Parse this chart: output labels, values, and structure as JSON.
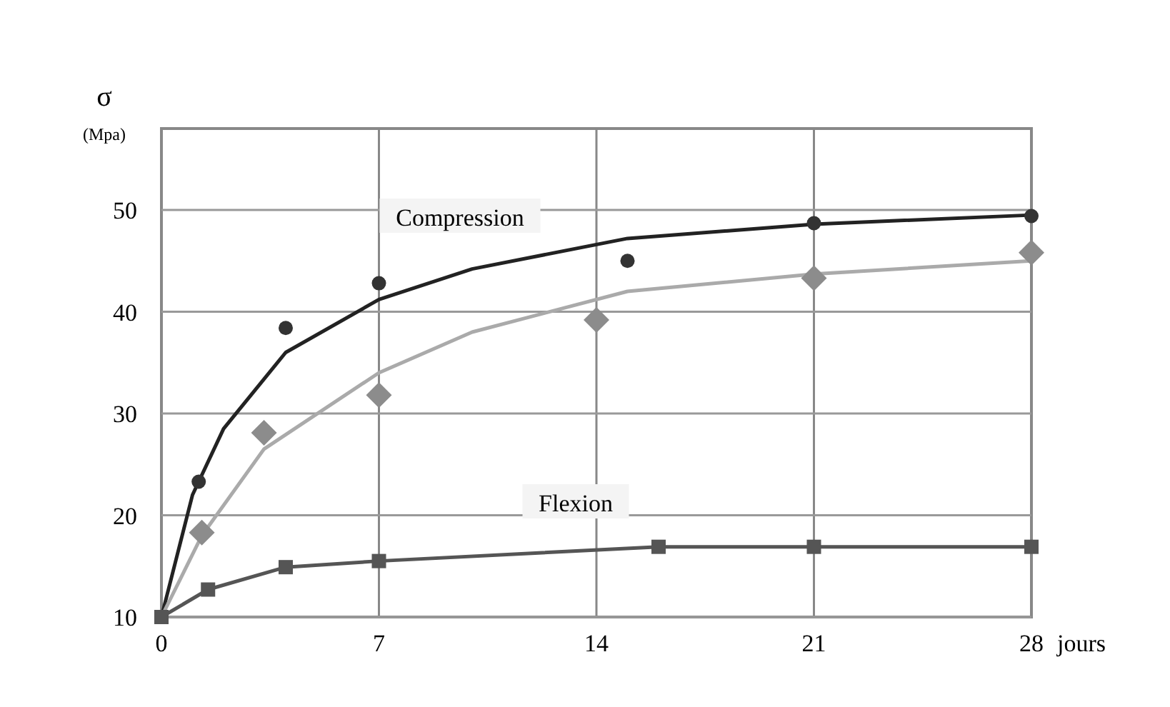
{
  "chart_data": {
    "type": "scatter",
    "ylabel": "σ\n(Mpa)",
    "xlabel": "jours",
    "xlim": [
      0,
      28
    ],
    "xticks": [
      0,
      7,
      14,
      21,
      28
    ],
    "ylim": [
      10,
      58
    ],
    "yticks": [
      10,
      20,
      30,
      40,
      50
    ],
    "grid": true,
    "line_style": "solid",
    "annotations": [
      "Compression",
      "Flexion"
    ],
    "series": [
      {
        "type": "line",
        "color": "#222222",
        "marker": "none",
        "x": [
          0,
          1,
          2,
          4,
          7,
          10,
          15,
          21,
          28
        ],
        "values": [
          10,
          22,
          28.5,
          36,
          41.2,
          44.2,
          47.2,
          48.6,
          49.5
        ]
      },
      {
        "type": "line",
        "color": "#aaaaaa",
        "marker": "none",
        "x": [
          0,
          1.3,
          3.3,
          7,
          10,
          15,
          21,
          28
        ],
        "values": [
          10,
          18,
          26.5,
          34,
          38,
          42,
          43.7,
          45
        ]
      },
      {
        "color": "#333333",
        "marker": "circle",
        "x": [
          1.2,
          4,
          7,
          15,
          21,
          28
        ],
        "values": [
          23.3,
          38.4,
          42.8,
          45,
          48.7,
          49.4
        ]
      },
      {
        "color": "#8c8c8c",
        "marker": "diamond",
        "x": [
          1.3,
          3.3,
          7,
          14,
          21,
          28
        ],
        "values": [
          18.3,
          28.1,
          31.8,
          39.2,
          43.3,
          45.8
        ]
      },
      {
        "type": "line",
        "color": "#555555",
        "marker": "square",
        "x": [
          0,
          1.5,
          4,
          7,
          16,
          21,
          28
        ],
        "values": [
          10,
          12.7,
          14.9,
          15.5,
          16.9,
          16.9,
          16.9
        ]
      }
    ]
  }
}
